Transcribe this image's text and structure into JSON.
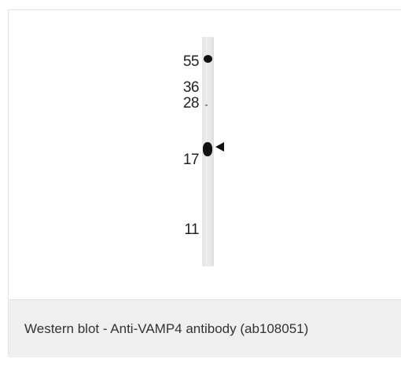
{
  "caption": "Western blot - Anti-VAMP4 antibody (ab108051)",
  "markers": [
    "55",
    "36",
    "28",
    "17",
    "11"
  ],
  "bands": {
    "marker_band": "55",
    "target_band_near": "17"
  },
  "colors": {
    "caption_bg": "#efefef",
    "band": "#111111",
    "lane": "#e8e8e8"
  },
  "icons": {
    "band_indicator": "left-arrowhead-icon"
  }
}
